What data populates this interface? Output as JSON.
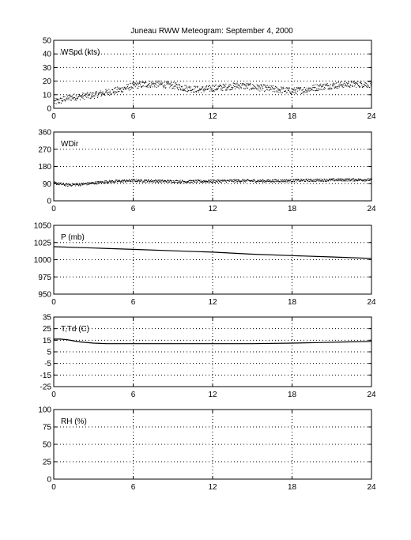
{
  "title": "Juneau RWW Meteogram: September  4, 2000",
  "chart_data": [
    {
      "type": "scatter",
      "label": "WSpd (kts)",
      "xlim": [
        0,
        24
      ],
      "xticks": [
        "0",
        "6",
        "12",
        "18",
        "24"
      ],
      "ylim": [
        0,
        50
      ],
      "yticks": [
        "0",
        "10",
        "20",
        "30",
        "40",
        "50"
      ],
      "grid": true,
      "trend": {
        "x": [
          0,
          0.5,
          1,
          2,
          3,
          4,
          5,
          6,
          7,
          8,
          9,
          10,
          11,
          12,
          13,
          14,
          15,
          16,
          17,
          18,
          19,
          20,
          21,
          22,
          23,
          24
        ],
        "y": [
          5,
          6,
          8,
          9,
          10,
          12,
          14,
          17,
          18,
          18,
          17,
          15,
          14,
          15,
          16,
          17,
          16,
          15,
          14,
          13,
          14,
          16,
          17,
          18,
          18,
          18
        ]
      },
      "spread": 2.5
    },
    {
      "type": "scatter",
      "label": "WDir",
      "xlim": [
        0,
        24
      ],
      "xticks": [
        "0",
        "6",
        "12",
        "18",
        "24"
      ],
      "ylim": [
        0,
        360
      ],
      "yticks": [
        "0",
        "90",
        "180",
        "270",
        "360"
      ],
      "grid": true,
      "trend": {
        "x": [
          0,
          1,
          2,
          3,
          4,
          6,
          8,
          10,
          12,
          14,
          16,
          18,
          20,
          22,
          24
        ],
        "y": [
          95,
          85,
          88,
          95,
          102,
          108,
          105,
          103,
          105,
          107,
          106,
          108,
          110,
          112,
          112
        ]
      },
      "spread": 7
    },
    {
      "type": "line",
      "label": "P (mb)",
      "xlim": [
        0,
        24
      ],
      "xticks": [
        "0",
        "6",
        "12",
        "18",
        "24"
      ],
      "ylim": [
        950,
        1050
      ],
      "yticks": [
        "950",
        "975",
        "1000",
        "1025",
        "1050"
      ],
      "grid": true,
      "x": [
        0,
        3,
        6,
        9,
        12,
        15,
        18,
        21,
        24
      ],
      "y": [
        1019,
        1017,
        1015,
        1013,
        1011,
        1008,
        1006,
        1004,
        1002
      ]
    },
    {
      "type": "line",
      "label": "T,Td (C)",
      "xlim": [
        0,
        24
      ],
      "xticks": [
        "0",
        "6",
        "12",
        "18",
        "24"
      ],
      "ylim": [
        -25,
        35
      ],
      "yticks": [
        "-25",
        "-15",
        "-5",
        "5",
        "15",
        "25",
        "35"
      ],
      "grid": true,
      "x": [
        0,
        0.5,
        1,
        1.5,
        2,
        3,
        4,
        6,
        9,
        12,
        15,
        18,
        20,
        22,
        24
      ],
      "y": [
        16,
        16,
        15.5,
        14.5,
        13.5,
        12.5,
        12,
        12,
        12,
        12,
        12,
        12.5,
        13,
        13.5,
        14
      ]
    },
    {
      "type": "line",
      "label": "RH (%)",
      "xlim": [
        0,
        24
      ],
      "xticks": [
        "0",
        "6",
        "12",
        "18",
        "24"
      ],
      "ylim": [
        0,
        100
      ],
      "yticks": [
        "0",
        "25",
        "50",
        "75",
        "100"
      ],
      "grid": true,
      "x": [],
      "y": []
    }
  ]
}
